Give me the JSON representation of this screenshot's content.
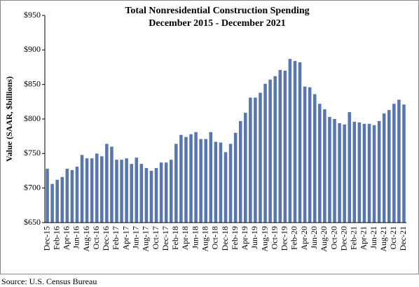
{
  "chart_data": {
    "type": "bar",
    "title": "Total Nonresidential Construction Spending",
    "subtitle": "December 2015 - December 2021",
    "y_label": "Value (SAAR, $billions)",
    "source": "Source:  U.S. Census Bureau",
    "color": "#5876b0",
    "categories": [
      "Dec-15",
      null,
      "Feb-16",
      null,
      "Apr-16",
      null,
      "Jun-16",
      null,
      "Aug-16",
      null,
      "Oct-16",
      null,
      "Dec-16",
      null,
      "Feb-17",
      null,
      "Apr-17",
      null,
      "Jun-17",
      null,
      "Aug-17",
      null,
      "Oct-17",
      null,
      "Dec-17",
      null,
      "Feb-18",
      null,
      "Apr-18",
      null,
      "Jun-18",
      null,
      "Aug-18",
      null,
      "Oct-18",
      null,
      "Dec-18",
      null,
      "Feb-19",
      null,
      "Apr-19",
      null,
      "Jun-19",
      null,
      "Aug-19",
      null,
      "Oct-19",
      null,
      "Dec-19",
      null,
      "Feb-20",
      null,
      "Apr-20",
      null,
      "Jun-20",
      null,
      "Aug-20",
      null,
      "Oct-20",
      null,
      "Dec-20",
      null,
      "Feb-21",
      null,
      "Apr-21",
      null,
      "Jun-21",
      null,
      "Aug-21",
      null,
      "Oct-21",
      null,
      "Dec-21"
    ],
    "values": [
      728,
      706,
      712,
      716,
      728,
      726,
      731,
      748,
      743,
      743,
      750,
      746,
      764,
      760,
      741,
      741,
      743,
      735,
      744,
      735,
      729,
      725,
      729,
      737,
      737,
      741,
      764,
      777,
      774,
      778,
      781,
      771,
      771,
      781,
      767,
      766,
      752,
      764,
      780,
      797,
      809,
      831,
      831,
      838,
      851,
      857,
      862,
      871,
      870,
      887,
      884,
      882,
      847,
      846,
      836,
      822,
      814,
      803,
      800,
      794,
      792,
      810,
      796,
      795,
      793,
      793,
      791,
      797,
      808,
      813,
      822,
      828,
      821
    ],
    "ylim": [
      650,
      950
    ],
    "yticks": [
      {
        "value": 650,
        "label": "$650"
      },
      {
        "value": 700,
        "label": "$700"
      },
      {
        "value": 750,
        "label": "$750"
      },
      {
        "value": 800,
        "label": "$800"
      },
      {
        "value": 850,
        "label": "$850"
      },
      {
        "value": 900,
        "label": "$900"
      },
      {
        "value": 950,
        "label": "$950"
      }
    ],
    "grid": false
  }
}
